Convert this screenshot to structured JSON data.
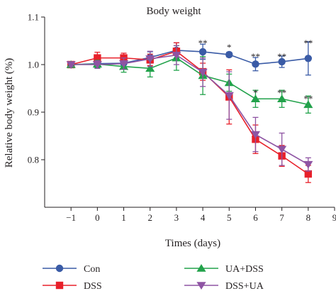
{
  "chart_data": {
    "type": "line",
    "title": "Body weight",
    "xlabel": "Times (days)",
    "ylabel": "Relative body weight (%)",
    "xlim": [
      -2,
      9
    ],
    "ylim": [
      0.7,
      1.1
    ],
    "x_ticks": [
      "−1",
      "0",
      "1",
      "2",
      "3",
      "4",
      "5",
      "6",
      "7",
      "8",
      "9"
    ],
    "x_tick_values": [
      -1,
      0,
      1,
      2,
      3,
      4,
      5,
      6,
      7,
      8,
      9
    ],
    "y_ticks": [
      "0.8",
      "0.9",
      "1.0",
      "1.1"
    ],
    "y_tick_values": [
      0.8,
      0.9,
      1.0,
      1.1
    ],
    "x": [
      -1,
      0,
      1,
      2,
      3,
      4,
      5,
      6,
      7,
      8
    ],
    "series": [
      {
        "name": "Con",
        "color": "#3a5ba6",
        "marker": "circle",
        "values": [
          1.0,
          1.002,
          1.003,
          1.015,
          1.03,
          1.027,
          1.021,
          1.001,
          1.006,
          1.013
        ],
        "errors": [
          0.004,
          0.008,
          0.01,
          0.012,
          0.016,
          0.016,
          0.005,
          0.014,
          0.012,
          0.035
        ]
      },
      {
        "name": "DSS",
        "color": "#e8202a",
        "marker": "square",
        "values": [
          1.0,
          1.014,
          1.014,
          1.01,
          1.028,
          0.985,
          0.932,
          0.843,
          0.808,
          0.77
        ],
        "errors": [
          0.004,
          0.012,
          0.01,
          0.012,
          0.018,
          0.018,
          0.057,
          0.03,
          0.022,
          0.018
        ]
      },
      {
        "name": "UA+DSS",
        "color": "#22a24b",
        "marker": "triangle-up",
        "values": [
          1.0,
          1.001,
          0.996,
          0.992,
          1.014,
          0.977,
          0.962,
          0.928,
          0.928,
          0.916
        ],
        "errors": [
          0.004,
          0.008,
          0.012,
          0.018,
          0.026,
          0.04,
          0.018,
          0.018,
          0.018,
          0.018
        ]
      },
      {
        "name": "DSS+UA",
        "color": "#8e54a3",
        "marker": "triangle-down",
        "values": [
          1.0,
          1.0,
          1.002,
          1.012,
          1.02,
          0.984,
          0.935,
          0.853,
          0.822,
          0.79
        ],
        "errors": [
          0.004,
          0.008,
          0.012,
          0.016,
          0.02,
          0.03,
          0.05,
          0.036,
          0.034,
          0.014
        ]
      }
    ],
    "annotations": [
      {
        "x": 4,
        "y": 1.052,
        "text": "**"
      },
      {
        "x": 5,
        "y": 1.043,
        "text": "*"
      },
      {
        "x": 6,
        "y": 1.024,
        "text": "**"
      },
      {
        "x": 7,
        "y": 1.024,
        "text": "**"
      },
      {
        "x": 8,
        "y": 1.052,
        "text": "**"
      },
      {
        "x": 6,
        "y": 0.948,
        "text": "*"
      },
      {
        "x": 7,
        "y": 0.948,
        "text": "**"
      },
      {
        "x": 8,
        "y": 0.935,
        "text": "**"
      }
    ],
    "grid": false,
    "legend_position": "bottom"
  }
}
